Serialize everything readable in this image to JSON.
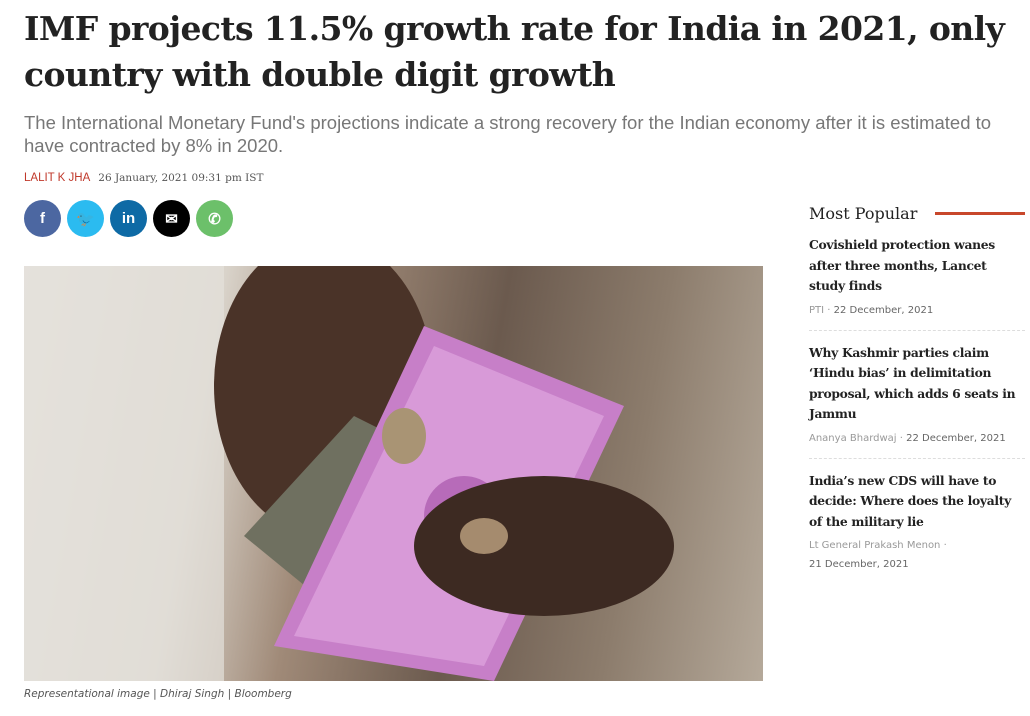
{
  "article": {
    "title": "IMF projects 11.5% growth rate for India in 2021, only country with double digit growth",
    "subtitle": "The International Monetary Fund's projections indicate a strong recovery for the Indian economy after it is estimated to have contracted by 8% in 2020.",
    "author": "LALIT K JHA",
    "date": "26 January, 2021 09:31 pm IST",
    "caption": "Representational image | Dhiraj Singh | Bloomberg"
  },
  "share": [
    {
      "icon": "facebook-icon",
      "glyph": "f",
      "color": "#4c67a1"
    },
    {
      "icon": "twitter-icon",
      "glyph": "🐦",
      "color": "#2bbbf0"
    },
    {
      "icon": "linkedin-icon",
      "glyph": "in",
      "color": "#0e6aa5"
    },
    {
      "icon": "email-icon",
      "glyph": "✉",
      "color": "#000000"
    },
    {
      "icon": "whatsapp-icon",
      "glyph": "✆",
      "color": "#6cc06a"
    }
  ],
  "sidebar": {
    "heading": "Most Popular",
    "items": [
      {
        "headline": "Covishield protection wanes after three months, Lancet study finds",
        "author": "PTI",
        "date": "22 December, 2021"
      },
      {
        "headline": "Why Kashmir parties claim ‘Hindu bias’ in delimitation proposal, which adds 6 seats in Jammu",
        "author": "Ananya Bhardwaj",
        "date": "22 December, 2021"
      },
      {
        "headline": "India’s new CDS will have to decide: Where does the loyalty of the military lie",
        "author": "Lt General Prakash Menon",
        "date": "21 December, 2021"
      }
    ]
  }
}
